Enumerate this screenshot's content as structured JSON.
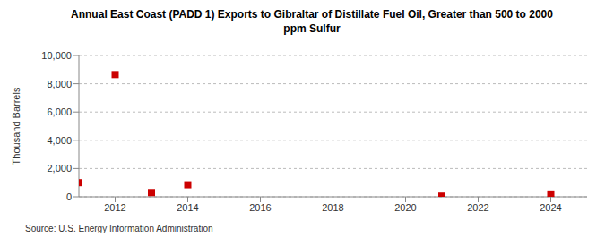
{
  "chart_data": {
    "type": "scatter",
    "title": "Annual East Coast (PADD 1) Exports to Gibraltar of Distillate Fuel Oil, Greater than 500 to 2000 ppm Sulfur",
    "y_label": "Thousand Barrels",
    "source": "Source: U.S. Energy Information Administration",
    "x": [
      2011,
      2012,
      2013,
      2014,
      2021,
      2024
    ],
    "values": [
      1000,
      8650,
      300,
      850,
      50,
      200
    ],
    "color": "#cc0000",
    "marker": "square",
    "xlim": [
      2011,
      2025
    ],
    "xticks": [
      2012,
      2014,
      2016,
      2018,
      2020,
      2022,
      2024
    ],
    "ylim": [
      0,
      10000
    ],
    "yticks": [
      0,
      {
        "value": 2000,
        "label": "2,000"
      },
      {
        "value": 4000,
        "label": "4,000"
      },
      {
        "value": 6000,
        "label": "6,000"
      },
      {
        "value": 8000,
        "label": "8,000"
      },
      {
        "value": 10000,
        "label": "10,000"
      }
    ],
    "grid": true
  }
}
